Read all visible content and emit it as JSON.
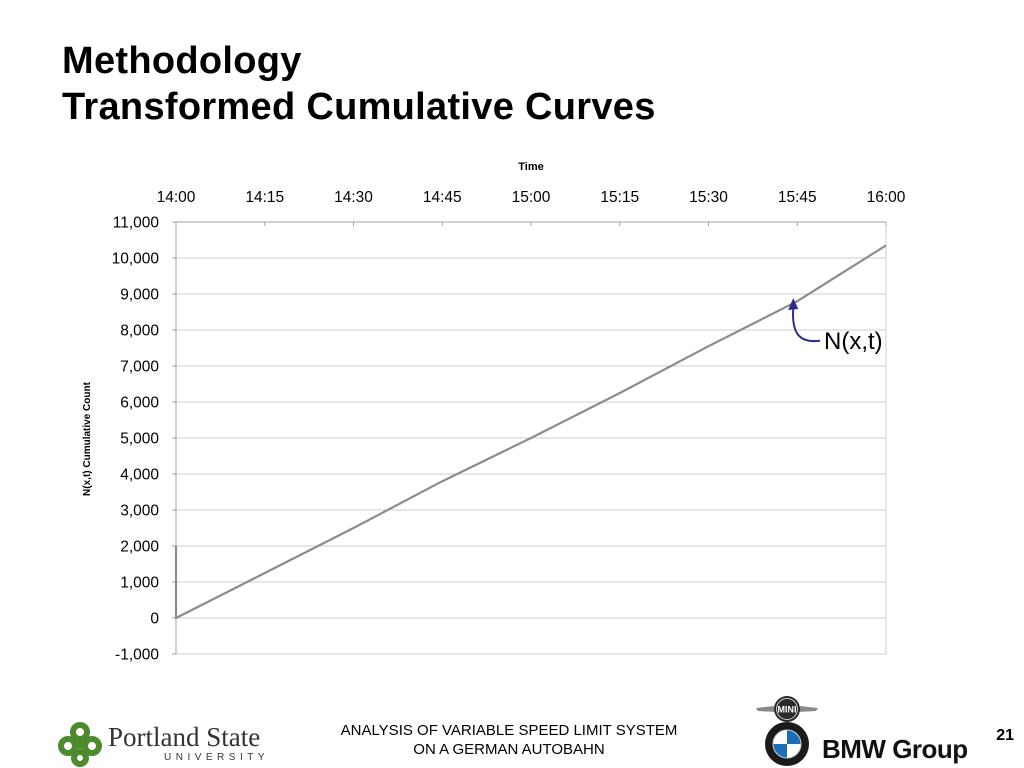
{
  "slide": {
    "title_line1": "Methodology",
    "title_line2": "Transformed Cumulative Curves",
    "footer_line1": "ANALYSIS OF VARIABLE SPEED LIMIT SYSTEM",
    "footer_line2": "ON A GERMAN AUTOBAHN",
    "page_number": "21",
    "psu_logo_word1": "Portland State",
    "psu_logo_word2": "UNIVERSITY",
    "bmw_logo_text": "BMW Group",
    "mini_logo_text": "MINI"
  },
  "chart_data": {
    "type": "line",
    "title": "",
    "xlabel": "Time",
    "ylabel": "N(x,t) Cumulative Count",
    "x_axis_position": "top",
    "x_ticks": [
      "14:00",
      "14:15",
      "14:30",
      "14:45",
      "15:00",
      "15:15",
      "15:30",
      "15:45",
      "16:00"
    ],
    "xlim": [
      "14:00",
      "16:00"
    ],
    "ylim": [
      -1000,
      11000
    ],
    "y_ticks": [
      11000,
      10000,
      9000,
      8000,
      7000,
      6000,
      5000,
      4000,
      3000,
      2000,
      1000,
      0,
      -1000
    ],
    "y_tick_labels": [
      "11,000",
      "10,000",
      "9,000",
      "8,000",
      "7,000",
      "6,000",
      "5,000",
      "4,000",
      "3,000",
      "2,000",
      "1,000",
      "0",
      "-1,000"
    ],
    "grid": true,
    "series": [
      {
        "label": "N(x,t)",
        "color": "#8c8c8c",
        "x": [
          "14:00",
          "14:00",
          "14:15",
          "14:30",
          "14:45",
          "15:00",
          "15:15",
          "15:30",
          "15:45",
          "16:00"
        ],
        "y": [
          2000,
          0,
          1250,
          2500,
          3800,
          5000,
          6250,
          7550,
          8800,
          10350
        ]
      }
    ],
    "annotations": [
      {
        "text": "N(x,t)",
        "x": "15:45",
        "y": 9000,
        "arrow_color": "#2b2d86"
      }
    ]
  }
}
